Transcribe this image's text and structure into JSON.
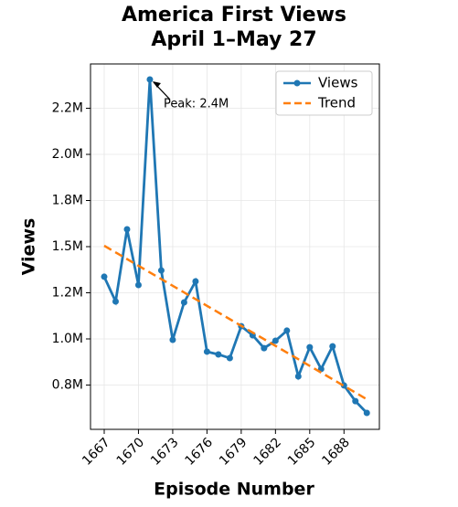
{
  "chart_data": {
    "type": "line",
    "title": "America First Views",
    "subtitle": "April 1–May 27",
    "x_label": "Episode Number",
    "y_label": "Views",
    "annotation": "Peak: 2.4M",
    "x": [
      1667,
      1668,
      1669,
      1670,
      1671,
      1672,
      1673,
      1674,
      1675,
      1676,
      1677,
      1678,
      1679,
      1680,
      1681,
      1682,
      1683,
      1684,
      1685,
      1686,
      1687,
      1688,
      1689,
      1690
    ],
    "series": [
      {
        "name": "Views",
        "color": "#1f77b4",
        "values": [
          1337000,
          1203000,
          1594000,
          1292000,
          2406000,
          1371000,
          995000,
          1198000,
          1312000,
          931000,
          916000,
          896000,
          1069000,
          1020000,
          950000,
          990000,
          1045000,
          797000,
          955000,
          837000,
          960000,
          748000,
          663000,
          599000
        ]
      },
      {
        "name": "Trend",
        "color": "#ff7f0e",
        "dashed": true,
        "x": [
          1667,
          1690
        ],
        "values": [
          1505000,
          673000
        ]
      }
    ],
    "xlim": [
      1665.8,
      1691.1
    ],
    "ylim": [
      510000,
      2490000
    ],
    "xticks": [
      1667,
      1670,
      1673,
      1676,
      1679,
      1682,
      1685,
      1688
    ],
    "yticks": [
      {
        "value": 750000,
        "label": "0.8M"
      },
      {
        "value": 1000000,
        "label": "1.0M"
      },
      {
        "value": 1250000,
        "label": "1.2M"
      },
      {
        "value": 1500000,
        "label": "1.5M"
      },
      {
        "value": 1750000,
        "label": "1.8M"
      },
      {
        "value": 2000000,
        "label": "2.0M"
      },
      {
        "value": 2250000,
        "label": "2.2M"
      }
    ],
    "grid": true,
    "legend": "upper right"
  }
}
